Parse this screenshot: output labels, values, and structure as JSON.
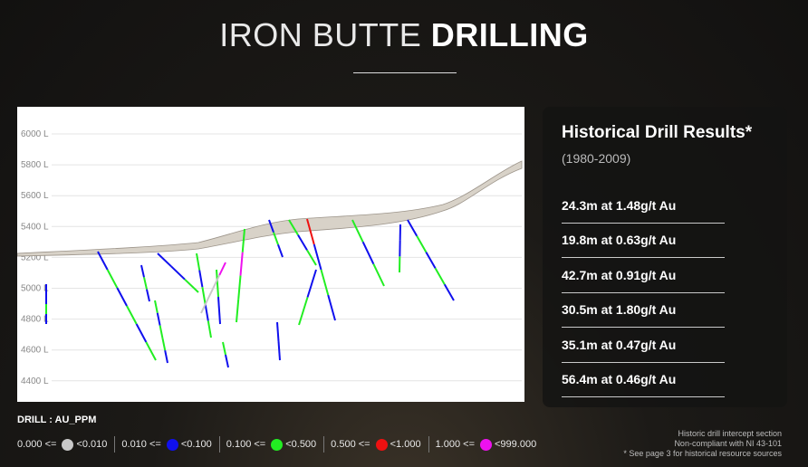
{
  "title": {
    "light": "IRON BUTTE",
    "bold": "DRILLING"
  },
  "section": {
    "elevation_labels": [
      "6000 L",
      "5800 L",
      "5600 L",
      "5400 L",
      "5200 L",
      "5000 L",
      "4800 L",
      "4600 L",
      "4400 L"
    ],
    "elevations": [
      6000,
      5800,
      5600,
      5400,
      5200,
      5000,
      4800,
      4600,
      4400
    ],
    "terrain_color": "#d8d2c8",
    "surface_color": "#9c948a"
  },
  "results": {
    "heading": "Historical Drill Results*",
    "years": "(1980-2009)",
    "intercepts": [
      "24.3m at 1.48g/t Au",
      "19.8m at 0.63g/t Au",
      "42.7m at 0.91g/t Au",
      "30.5m at 1.80g/t Au",
      "35.1m at 0.47g/t Au",
      "56.4m at 0.46g/t Au"
    ]
  },
  "legend": {
    "title": "DRILL : AU_PPM",
    "items": [
      {
        "low": "0.000 <=",
        "high": "<0.010",
        "color": "#c8c8c8"
      },
      {
        "low": "0.010 <=",
        "high": "<0.100",
        "color": "#1010ee"
      },
      {
        "low": "0.100 <=",
        "high": "<0.500",
        "color": "#22ee22"
      },
      {
        "low": "0.500 <=",
        "high": "<1.000",
        "color": "#ee1111"
      },
      {
        "low": "1.000 <=",
        "high": "<999.000",
        "color": "#ee11ee"
      }
    ]
  },
  "footnote": {
    "line1": "Historic drill intercept section",
    "line2": "Non-compliant with NI 43-101",
    "line3": "* See page 3 for historical resource sources"
  }
}
